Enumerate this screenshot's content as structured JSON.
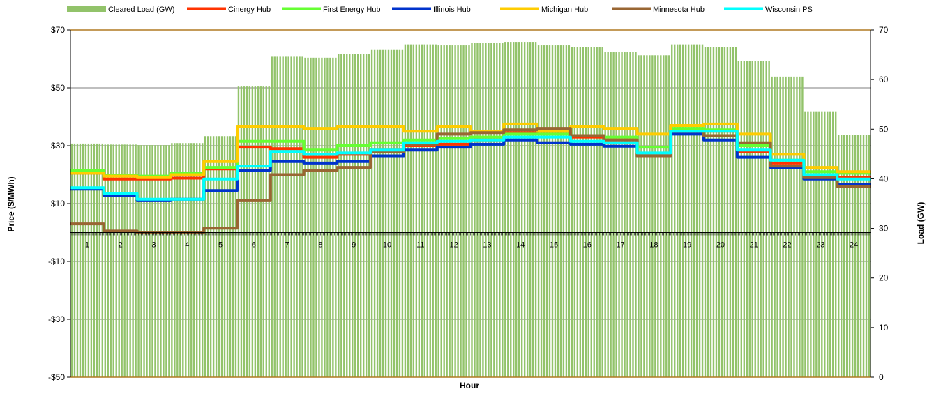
{
  "chart_data": {
    "type": "bar+line",
    "title": "",
    "xlabel": "Hour",
    "ylabel_left": "Price ($/MWh)",
    "ylabel_right": "Load (GW)",
    "y_left_range": [
      -50,
      70
    ],
    "y_right_range": [
      0,
      70
    ],
    "y_left_ticks": [
      {
        "value": 70,
        "label": "$70"
      },
      {
        "value": 50,
        "label": "$50"
      },
      {
        "value": 30,
        "label": "$30"
      },
      {
        "value": 10,
        "label": "$10"
      },
      {
        "value": -10,
        "label": "-$10"
      },
      {
        "value": -30,
        "label": "-$30"
      },
      {
        "value": -50,
        "label": "-$50"
      }
    ],
    "y_right_ticks": [
      {
        "value": 70,
        "label": "70"
      },
      {
        "value": 60,
        "label": "60"
      },
      {
        "value": 50,
        "label": "50"
      },
      {
        "value": 40,
        "label": "40"
      },
      {
        "value": 30,
        "label": "30"
      },
      {
        "value": 20,
        "label": "20"
      },
      {
        "value": 10,
        "label": "10"
      },
      {
        "value": 0,
        "label": "0"
      }
    ],
    "gridlines": [
      50,
      30,
      10,
      -10,
      -30
    ],
    "hours": [
      "1",
      "2",
      "3",
      "4",
      "5",
      "6",
      "7",
      "8",
      "9",
      "10",
      "11",
      "12",
      "13",
      "14",
      "15",
      "16",
      "17",
      "18",
      "19",
      "20",
      "21",
      "22",
      "23",
      "24"
    ],
    "legend_position": "top",
    "load_series": {
      "name": "Cleared Load (GW)",
      "color": "#92c36a",
      "values": [
        47.1,
        46.9,
        46.8,
        47.2,
        48.6,
        58.6,
        64.6,
        64.4,
        65.1,
        66.1,
        67.1,
        66.9,
        67.4,
        67.6,
        66.9,
        66.5,
        65.5,
        64.9,
        67.1,
        66.5,
        63.7,
        60.6,
        53.6,
        48.9
      ]
    },
    "series": [
      {
        "name": "Cinergy Hub",
        "color": "#ff3300",
        "values": [
          20.5,
          18.5,
          18.5,
          18.8,
          22,
          29.5,
          29,
          26,
          27,
          28.5,
          30,
          30.5,
          32,
          34.5,
          35,
          33,
          32,
          27,
          35,
          35,
          28,
          24,
          20,
          19
        ]
      },
      {
        "name": "First Energy Hub",
        "color": "#66ff33",
        "values": [
          21.5,
          19.8,
          19.5,
          20.5,
          22.5,
          31.5,
          31.5,
          28.5,
          30,
          31,
          32,
          32.5,
          33,
          34,
          34,
          33.5,
          33,
          29.5,
          36,
          35.5,
          30,
          25,
          21,
          20.5
        ]
      },
      {
        "name": "Illinois Hub",
        "color": "#0033cc",
        "values": [
          15,
          12.8,
          11,
          11.5,
          14.5,
          21.5,
          24.5,
          24,
          24.5,
          26.5,
          28.5,
          29.5,
          30.5,
          32,
          31,
          30.5,
          29.8,
          26.5,
          34,
          32,
          26,
          22.5,
          18.5,
          16.5
        ]
      },
      {
        "name": "Michigan Hub",
        "color": "#ffcc00",
        "values": [
          20.5,
          19.5,
          19,
          20,
          24.5,
          36.5,
          36.5,
          36,
          36.5,
          36.5,
          35,
          36.5,
          35,
          37.5,
          35,
          36.5,
          36,
          34,
          37,
          37.5,
          34,
          27,
          22.5,
          21
        ]
      },
      {
        "name": "Minnesota Hub",
        "color": "#996633",
        "values": [
          3,
          0.5,
          0,
          0,
          1.5,
          11,
          20,
          21.5,
          22.5,
          28,
          30.5,
          34,
          34.5,
          35.5,
          36,
          33.5,
          32,
          26.5,
          35,
          33.5,
          31,
          23,
          19,
          16
        ]
      },
      {
        "name": "Wisconsin PS",
        "color": "#00ffff",
        "values": [
          15.5,
          13.5,
          11.5,
          11.5,
          18.5,
          23,
          28,
          27,
          27.5,
          28.5,
          31,
          31.5,
          32,
          33,
          33,
          31.5,
          31,
          27.5,
          35,
          35,
          28.5,
          25,
          20,
          18.5
        ]
      }
    ]
  }
}
